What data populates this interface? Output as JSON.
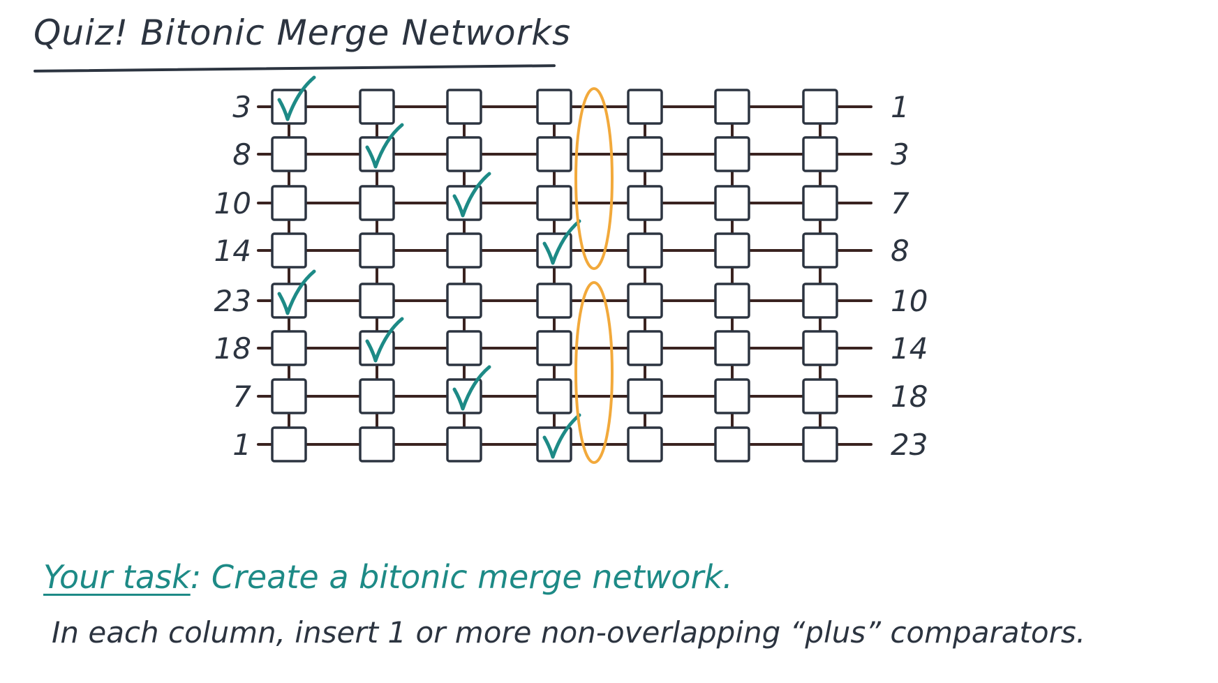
{
  "title": "Quiz! Bitonic Merge Networks",
  "inputs": [
    "3",
    "8",
    "10",
    "14",
    "23",
    "18",
    "7",
    "1"
  ],
  "outputs": [
    "1",
    "3",
    "7",
    "8",
    "10",
    "14",
    "18",
    "23"
  ],
  "columns": 7,
  "checked_cells": [
    {
      "col": 0,
      "row": 0
    },
    {
      "col": 0,
      "row": 4
    },
    {
      "col": 1,
      "row": 1
    },
    {
      "col": 1,
      "row": 5
    },
    {
      "col": 2,
      "row": 2
    },
    {
      "col": 2,
      "row": 6
    },
    {
      "col": 3,
      "row": 3
    },
    {
      "col": 3,
      "row": 7
    }
  ],
  "circled_groups": [
    {
      "after_col": 3,
      "rows": [
        0,
        3
      ]
    },
    {
      "after_col": 3,
      "rows": [
        4,
        7
      ]
    }
  ],
  "colors": {
    "wire": "#3a2320",
    "box_stroke": "#2c3440",
    "check": "#1d8a86",
    "circle": "#f2a93b",
    "text": "#2c3440",
    "task": "#1d8a86"
  },
  "task": {
    "lead": "Your task",
    "rest": ": Create a bitonic merge network."
  },
  "instruction": "In each column, insert 1 or more non-overlapping “plus” comparators."
}
